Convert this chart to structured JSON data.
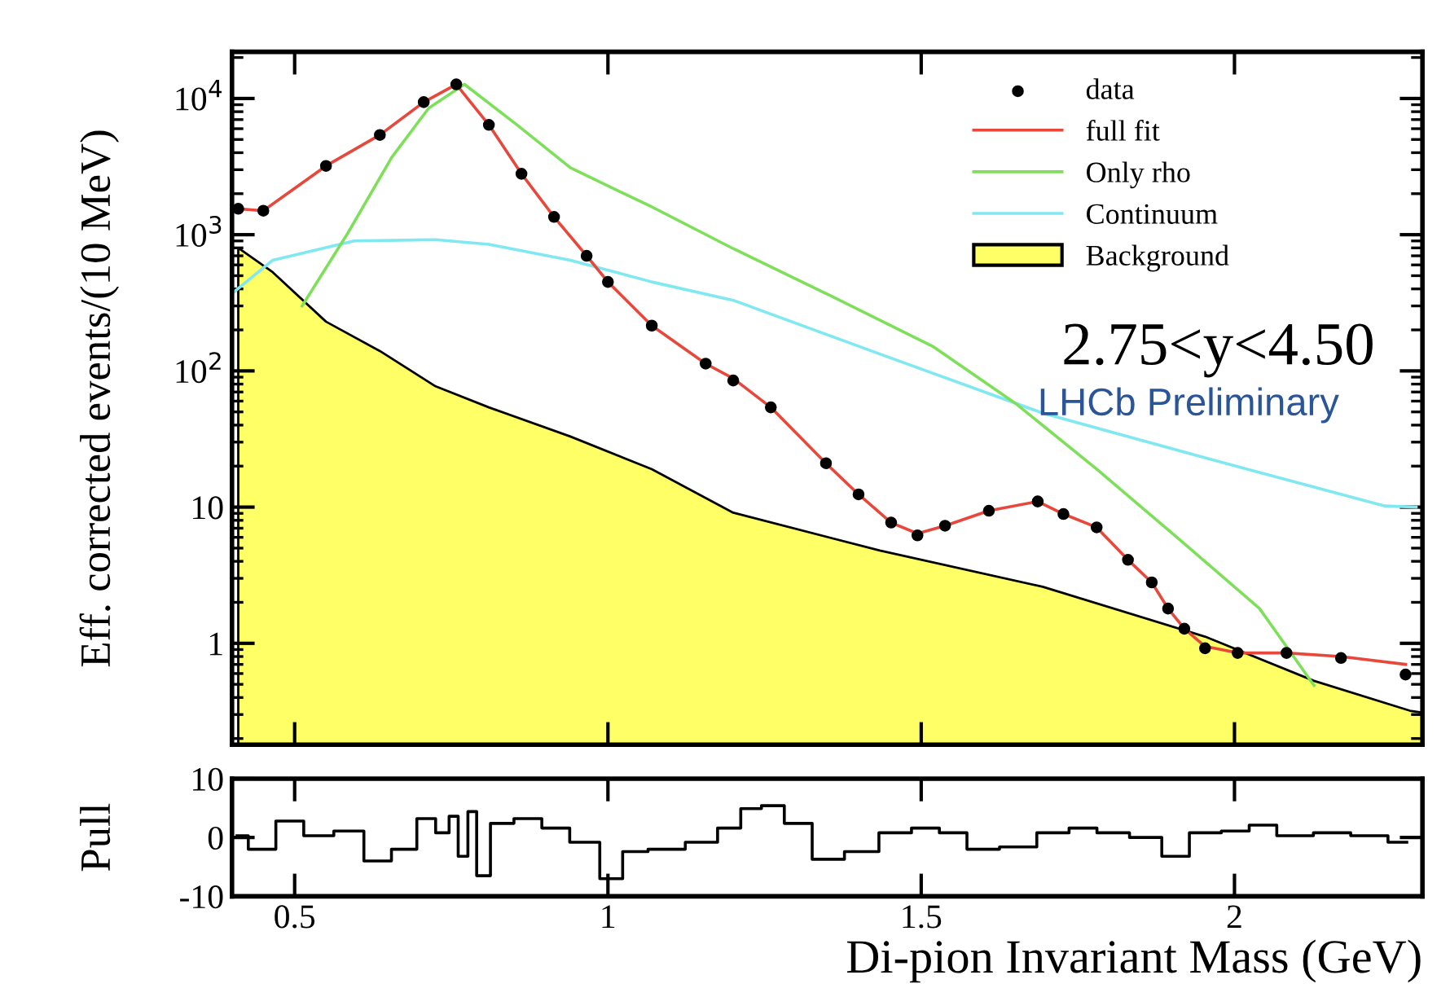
{
  "chart_data": [
    {
      "type": "line",
      "ylabel": "Eff. corrected events/(10 MeV)",
      "log": "y",
      "xlim": [
        0.4,
        2.3
      ],
      "xticks": [
        0.5,
        1,
        1.5,
        2
      ],
      "ylim": [
        0.18,
        22000
      ],
      "yticks": [
        1,
        10,
        {
          "value": 100,
          "label": "10$^{2}$"
        },
        {
          "value": 1000,
          "label": "10$^{3}$"
        },
        {
          "value": 10000,
          "label": "10$^{4}$"
        }
      ],
      "tick_labels": "y",
      "grid": false,
      "legend": "top right",
      "annotations": [
        "2.75<y<4.50",
        "LHCb Preliminary"
      ],
      "series": [
        {
          "name": "Background",
          "type": "area",
          "color": "#ffff66",
          "x": [
            0.41,
            0.465,
            0.55,
            0.636,
            0.725,
            0.81,
            0.94,
            1.07,
            1.2,
            1.434,
            1.694,
            1.953,
            2.127,
            2.28,
            2.3
          ],
          "values": [
            800,
            530,
            230,
            140,
            77,
            54,
            33,
            19,
            9.1,
            4.8,
            2.6,
            1.12,
            0.53,
            0.32,
            0.31
          ]
        },
        {
          "name": "Continuum",
          "type": "line",
          "color": "#80e8f0",
          "x": [
            0.4,
            0.465,
            0.595,
            0.725,
            0.81,
            0.94,
            1.07,
            1.2,
            1.434,
            1.694,
            1.953,
            2.24,
            2.29
          ],
          "values": [
            370,
            650,
            900,
            920,
            850,
            650,
            450,
            330,
            133,
            49,
            23,
            10.2,
            10
          ]
        },
        {
          "name": "Only rho",
          "type": "line",
          "color": "#7ee05a",
          "x": [
            0.512,
            0.585,
            0.655,
            0.714,
            0.771,
            0.855,
            0.94,
            1.07,
            1.2,
            1.348,
            1.52,
            1.65,
            1.78,
            1.91,
            2.04,
            2.127
          ],
          "values": [
            300,
            1030,
            3700,
            8500,
            12700,
            6400,
            3100,
            1600,
            790,
            370,
            150,
            58,
            19,
            5.9,
            1.8,
            0.49
          ]
        },
        {
          "name": "full fit",
          "type": "line",
          "color": "#e8483c",
          "x": [
            0.41,
            0.45,
            0.55,
            0.636,
            0.706,
            0.758,
            0.81,
            0.862,
            0.914,
            0.966,
            1.0,
            1.07,
            1.156,
            1.2,
            1.26,
            1.348,
            1.4,
            1.452,
            1.494,
            1.538,
            1.608,
            1.686,
            1.727,
            1.78,
            1.83,
            1.868,
            1.894,
            1.92,
            1.953,
            2.005,
            2.083,
            2.17,
            2.273
          ],
          "values": [
            1550,
            1500,
            3200,
            5400,
            9400,
            12700,
            6400,
            2800,
            1350,
            700,
            450,
            215,
            113,
            88,
            54,
            21,
            12.4,
            7.7,
            6.4,
            7.3,
            9.4,
            11,
            8.9,
            7.1,
            4.1,
            2.8,
            1.8,
            1.28,
            0.95,
            0.85,
            0.85,
            0.8,
            0.7
          ]
        },
        {
          "name": "data",
          "type": "scatter",
          "color": "#000000",
          "marker": "circle",
          "x": [
            0.41,
            0.45,
            0.55,
            0.636,
            0.706,
            0.758,
            0.81,
            0.862,
            0.914,
            0.966,
            1.0,
            1.07,
            1.156,
            1.2,
            1.26,
            1.348,
            1.4,
            1.452,
            1.494,
            1.538,
            1.608,
            1.686,
            1.727,
            1.78,
            1.83,
            1.868,
            1.894,
            1.92,
            1.953,
            2.005,
            2.083,
            2.17,
            2.273
          ],
          "values": [
            1550,
            1500,
            3200,
            5400,
            9400,
            12700,
            6400,
            2800,
            1350,
            700,
            450,
            215,
            113,
            85,
            54,
            21,
            12.4,
            7.7,
            6.2,
            7.3,
            9.4,
            11,
            8.9,
            7.1,
            4.1,
            2.8,
            1.8,
            1.28,
            0.92,
            0.85,
            0.85,
            0.78,
            0.59
          ]
        }
      ]
    },
    {
      "type": "step",
      "ylabel": "Pull",
      "xlabel": "Di-pion Invariant Mass (GeV)",
      "xlim": [
        0.4,
        2.3
      ],
      "xticks": [
        0.5,
        1,
        1.5,
        2
      ],
      "ylim": [
        -10,
        10
      ],
      "yticks": [
        -10,
        0,
        10
      ],
      "grid": false,
      "series": [
        {
          "color": "#000000",
          "x": [
            0.408,
            0.444,
            0.496,
            0.533,
            0.592,
            0.629,
            0.68,
            0.71,
            0.74,
            0.753,
            0.769,
            0.784,
            0.797,
            0.828,
            0.872,
            0.917,
            0.961,
            1.013,
            1.034,
            1.094,
            1.153,
            1.197,
            1.227,
            1.263,
            1.3,
            1.352,
            1.403,
            1.462,
            1.507,
            1.551,
            1.595,
            1.655,
            1.714,
            1.758,
            1.803,
            1.862,
            1.906,
            1.95,
            2.008,
            2.039,
            2.096,
            2.156,
            2.215,
            2.275
          ],
          "values": [
            0.3,
            -2,
            2.8,
            0.3,
            1.1,
            -4,
            -2,
            3.2,
            0.8,
            3.6,
            -3.2,
            4.4,
            -6.5,
            2.4,
            3.2,
            1.6,
            -0.8,
            -7,
            -2.4,
            -2,
            -0.8,
            1.6,
            4.9,
            5.4,
            2.4,
            -3.7,
            -2.4,
            0.8,
            1.6,
            0.8,
            -2,
            -1.6,
            0.8,
            1.6,
            0.8,
            0,
            -3.2,
            0.8,
            1.1,
            2.1,
            0.3,
            0.8,
            0.3,
            -0.8
          ]
        }
      ]
    }
  ]
}
